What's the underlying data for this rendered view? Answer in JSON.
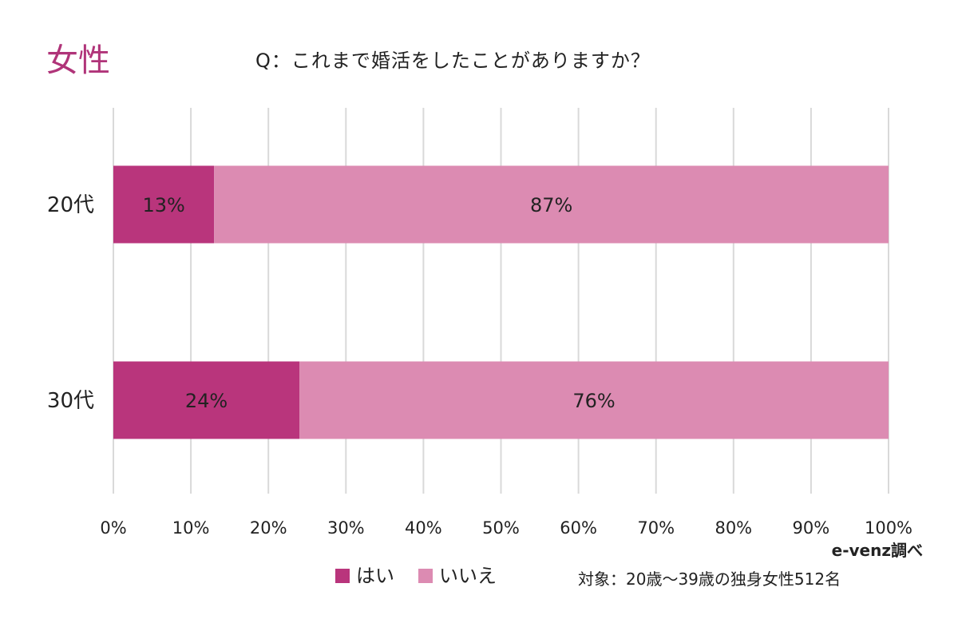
{
  "colors": {
    "yes": "#b9357c",
    "no": "#dc8bb2",
    "accent": "#b03479",
    "grid": "#d9d9d9"
  },
  "header": {
    "gender_label": "女性",
    "question": "Q：これまで婚活をしたことがありますか？"
  },
  "chart_data": {
    "type": "bar",
    "orientation": "horizontal",
    "stacked": true,
    "categories": [
      "20代",
      "30代"
    ],
    "series": [
      {
        "name": "はい",
        "values": [
          13,
          24
        ],
        "labels": [
          "13%",
          "24%"
        ]
      },
      {
        "name": "いいえ",
        "values": [
          87,
          76
        ],
        "labels": [
          "87%",
          "76%"
        ]
      }
    ],
    "xlim": [
      0,
      100
    ],
    "xticks": [
      "0%",
      "10%",
      "20%",
      "30%",
      "40%",
      "50%",
      "60%",
      "70%",
      "80%",
      "90%",
      "100%"
    ],
    "grid": true,
    "legend": "bottom"
  },
  "footer": {
    "source": "e-venz調べ",
    "note": "対象：20歳〜39歳の独身女性512名"
  }
}
